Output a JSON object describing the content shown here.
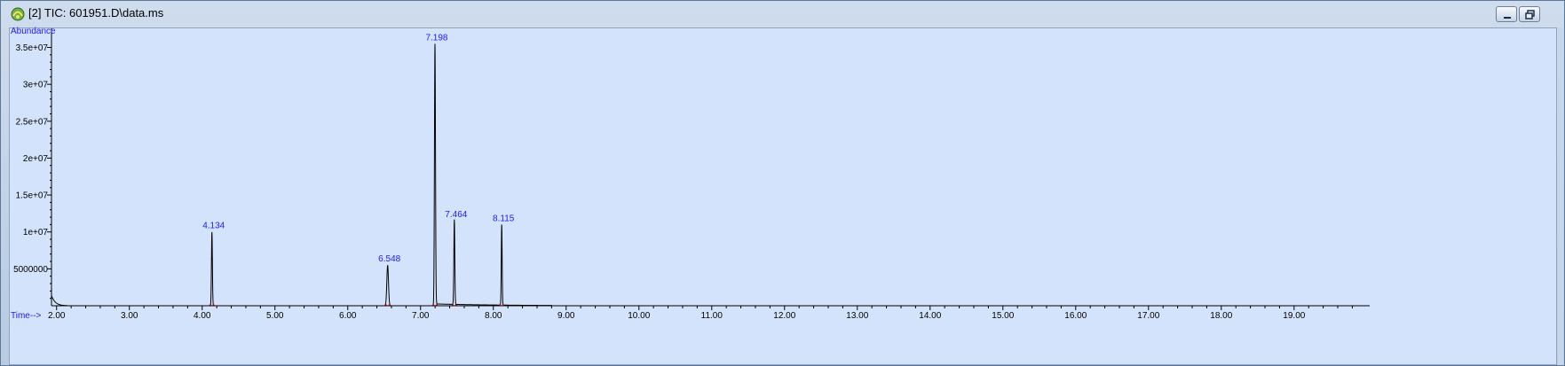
{
  "window": {
    "title": "[2] TIC: 601951.D\\data.ms",
    "buttons": [
      "minimize",
      "restore",
      "close"
    ]
  },
  "colors": {
    "background": "#d4e3fc",
    "trace": "#000000",
    "label": "#1a1aff",
    "baseline_marker": "#ff0000"
  },
  "chart_data": {
    "type": "line",
    "ylabel": "Abundance",
    "xlabel": "Time-->",
    "xlim": [
      1.93,
      19.99
    ],
    "ylim": [
      0,
      36500000
    ],
    "x_ticks": [
      2.0,
      3.0,
      4.0,
      5.0,
      6.0,
      7.0,
      8.0,
      9.0,
      10.0,
      11.0,
      12.0,
      13.0,
      14.0,
      15.0,
      16.0,
      17.0,
      18.0,
      19.0
    ],
    "x_tick_labels": [
      "2.00",
      "3.00",
      "4.00",
      "5.00",
      "6.00",
      "7.00",
      "8.00",
      "9.00",
      "10.00",
      "11.00",
      "12.00",
      "13.00",
      "14.00",
      "15.00",
      "16.00",
      "17.00",
      "18.00",
      "19.00"
    ],
    "y_ticks": [
      5000000,
      10000000,
      15000000,
      20000000,
      25000000,
      30000000,
      35000000
    ],
    "y_tick_labels": [
      "5000000",
      "1e+07",
      "1.5e+07",
      "2e+07",
      "2.5e+07",
      "3e+07",
      "3.5e+07"
    ],
    "grid": false,
    "peaks": [
      {
        "label": "4.134",
        "x": 4.134,
        "height": 10000000,
        "width": 0.02
      },
      {
        "label": "6.548",
        "x": 6.548,
        "height": 5500000,
        "width": 0.035
      },
      {
        "label": "7.198",
        "x": 7.198,
        "height": 35500000,
        "width": 0.022
      },
      {
        "label": "7.464",
        "x": 7.464,
        "height": 11500000,
        "width": 0.02
      },
      {
        "label": "8.115",
        "x": 8.115,
        "height": 11000000,
        "width": 0.018
      }
    ]
  }
}
